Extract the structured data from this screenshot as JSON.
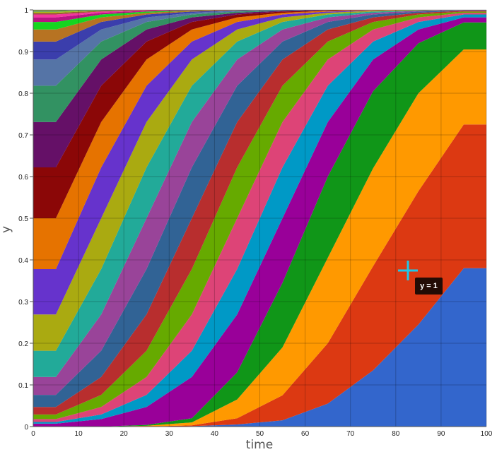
{
  "chart_data": {
    "type": "area",
    "stacked": true,
    "title": "",
    "xlabel": "time",
    "ylabel": "y",
    "xlim": [
      0,
      100
    ],
    "ylim": [
      0,
      1
    ],
    "grid": true,
    "legend": "none",
    "x": [
      0,
      5,
      15,
      25,
      35,
      45,
      55,
      65,
      75,
      85,
      95,
      100
    ],
    "x_ticks": [
      "0",
      "10",
      "20",
      "30",
      "40",
      "50",
      "60",
      "70",
      "80",
      "90",
      "100"
    ],
    "y_ticks": [
      "0",
      "0.1",
      "0.2",
      "0.3",
      "0.4",
      "0.5",
      "0.6",
      "0.7",
      "0.8",
      "0.9",
      "1"
    ],
    "colors": [
      "#3366cc",
      "#dc3912",
      "#ff9900",
      "#109618",
      "#990099",
      "#0099c6",
      "#dd4477",
      "#66aa00",
      "#b82e2e",
      "#316395",
      "#994499",
      "#22aa99",
      "#aaaa11",
      "#6633cc",
      "#e67300",
      "#8b0707",
      "#651067",
      "#329262",
      "#5574a6",
      "#3b3eac",
      "#b77322",
      "#16d620",
      "#b91383",
      "#f4359e",
      "#9c5935",
      "#a9c413",
      "#2a778d",
      "#668d1c",
      "#bea413"
    ],
    "series": [
      {
        "values": [
          0,
          0,
          0,
          0,
          0.001,
          0.005,
          0.015,
          0.055,
          0.135,
          0.245,
          0.38,
          0.38
        ]
      },
      {
        "values": [
          0,
          0,
          0,
          0,
          0.002,
          0.015,
          0.06,
          0.145,
          0.25,
          0.32,
          0.345,
          0.345
        ]
      },
      {
        "values": [
          0,
          0,
          0,
          0.002,
          0.007,
          0.045,
          0.115,
          0.205,
          0.235,
          0.235,
          0.18,
          0.18
        ]
      },
      {
        "values": [
          0,
          0,
          0,
          0.002,
          0.01,
          0.065,
          0.155,
          0.195,
          0.185,
          0.12,
          0.065,
          0.065
        ]
      },
      {
        "values": [
          0.007,
          0.007,
          0.018,
          0.043,
          0.099,
          0.139,
          0.155,
          0.131,
          0.076,
          0.033,
          0.012,
          0.012
        ]
      },
      {
        "values": [
          0.004,
          0.004,
          0.011,
          0.029,
          0.063,
          0.109,
          0.122,
          0.087,
          0.043,
          0.018,
          0.007,
          0.007
        ]
      },
      {
        "values": [
          0.007,
          0.007,
          0.018,
          0.043,
          0.087,
          0.122,
          0.109,
          0.063,
          0.029,
          0.011,
          0.004,
          0.004
        ]
      },
      {
        "values": [
          0.011,
          0.011,
          0.029,
          0.063,
          0.109,
          0.122,
          0.087,
          0.043,
          0.018,
          0.007,
          0.003,
          0.003
        ]
      },
      {
        "values": [
          0.018,
          0.018,
          0.043,
          0.087,
          0.122,
          0.109,
          0.063,
          0.029,
          0.011,
          0.004,
          0.002,
          0.002
        ]
      },
      {
        "values": [
          0.029,
          0.029,
          0.063,
          0.109,
          0.122,
          0.087,
          0.043,
          0.018,
          0.007,
          0.003,
          0.001,
          0.001
        ]
      },
      {
        "values": [
          0.043,
          0.043,
          0.087,
          0.122,
          0.109,
          0.063,
          0.029,
          0.011,
          0.004,
          0.002,
          0.001,
          0.001
        ]
      },
      {
        "values": [
          0.063,
          0.063,
          0.109,
          0.122,
          0.087,
          0.043,
          0.018,
          0.007,
          0.003,
          0.001,
          0,
          0
        ]
      },
      {
        "values": [
          0.087,
          0.087,
          0.122,
          0.109,
          0.063,
          0.029,
          0.011,
          0.004,
          0.002,
          0.001,
          0,
          0
        ]
      },
      {
        "values": [
          0.109,
          0.109,
          0.122,
          0.087,
          0.043,
          0.018,
          0.007,
          0.003,
          0.001,
          0,
          0,
          0
        ]
      },
      {
        "values": [
          0.122,
          0.122,
          0.109,
          0.063,
          0.029,
          0.011,
          0.004,
          0.002,
          0.001,
          0,
          0,
          0
        ]
      },
      {
        "values": [
          0.122,
          0.122,
          0.087,
          0.043,
          0.018,
          0.007,
          0.003,
          0.001,
          0,
          0,
          0,
          0
        ]
      },
      {
        "values": [
          0.109,
          0.109,
          0.063,
          0.029,
          0.011,
          0.004,
          0.002,
          0.001,
          0,
          0,
          0,
          0
        ]
      },
      {
        "values": [
          0.087,
          0.087,
          0.043,
          0.018,
          0.007,
          0.003,
          0.001,
          0,
          0,
          0,
          0,
          0
        ]
      },
      {
        "values": [
          0.063,
          0.063,
          0.029,
          0.011,
          0.004,
          0.002,
          0.001,
          0,
          0,
          0,
          0,
          0
        ]
      },
      {
        "values": [
          0.043,
          0.043,
          0.018,
          0.007,
          0.003,
          0.001,
          0,
          0,
          0,
          0,
          0,
          0
        ]
      },
      {
        "values": [
          0.029,
          0.029,
          0.011,
          0.004,
          0.002,
          0.001,
          0,
          0,
          0,
          0,
          0,
          0
        ]
      },
      {
        "values": [
          0.018,
          0.018,
          0.007,
          0.003,
          0.001,
          0,
          0,
          0,
          0,
          0,
          0,
          0
        ]
      },
      {
        "values": [
          0.011,
          0.011,
          0.004,
          0.002,
          0.001,
          0,
          0,
          0,
          0,
          0,
          0,
          0
        ]
      },
      {
        "values": [
          0.007,
          0.007,
          0.003,
          0.001,
          0,
          0,
          0,
          0,
          0,
          0,
          0,
          0
        ]
      },
      {
        "values": [
          0.004,
          0.004,
          0.002,
          0.001,
          0,
          0,
          0,
          0,
          0,
          0,
          0,
          0
        ]
      },
      {
        "values": [
          0.003,
          0.003,
          0.001,
          0,
          0,
          0,
          0,
          0,
          0,
          0,
          0,
          0
        ]
      },
      {
        "values": [
          0.002,
          0.002,
          0.001,
          0,
          0,
          0,
          0,
          0,
          0,
          0,
          0,
          0
        ]
      },
      {
        "values": [
          0.001,
          0.001,
          0,
          0,
          0,
          0,
          0,
          0,
          0,
          0,
          0,
          0
        ]
      },
      {
        "values": [
          0.001,
          0.001,
          0,
          0,
          0,
          0,
          0,
          0,
          0,
          0,
          0,
          0
        ]
      }
    ],
    "tooltip": "y = 1",
    "crosshair_color": "#1ec8e8"
  }
}
